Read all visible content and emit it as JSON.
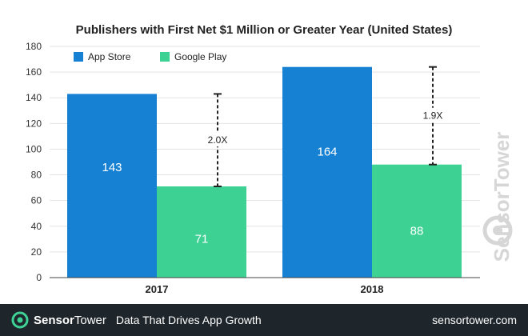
{
  "chart_data": {
    "type": "bar",
    "title": "Publishers with First Net $1 Million or Greater Year (United States)",
    "categories": [
      "2017",
      "2018"
    ],
    "series": [
      {
        "name": "App Store",
        "color": "#1681d3",
        "values": [
          143,
          164
        ]
      },
      {
        "name": "Google Play",
        "color": "#3dd194",
        "values": [
          71,
          88
        ]
      }
    ],
    "multipliers": [
      "2.0X",
      "1.9X"
    ],
    "ylim": [
      0,
      180
    ],
    "yticks": [
      0,
      20,
      40,
      60,
      80,
      100,
      120,
      140,
      160,
      180
    ],
    "grid": true,
    "legend": "top-left"
  },
  "watermark": {
    "text": "SensorTower"
  },
  "footer": {
    "brand_a": "Sensor",
    "brand_b": "Tower",
    "tagline": "Data That Drives App Growth",
    "site": "sensortower.com"
  },
  "colors": {
    "footer_bg": "#1e252b",
    "grid": "#e3e3e3",
    "text": "#333333"
  },
  "icons": {
    "logo": "sensortower-logo-icon"
  }
}
